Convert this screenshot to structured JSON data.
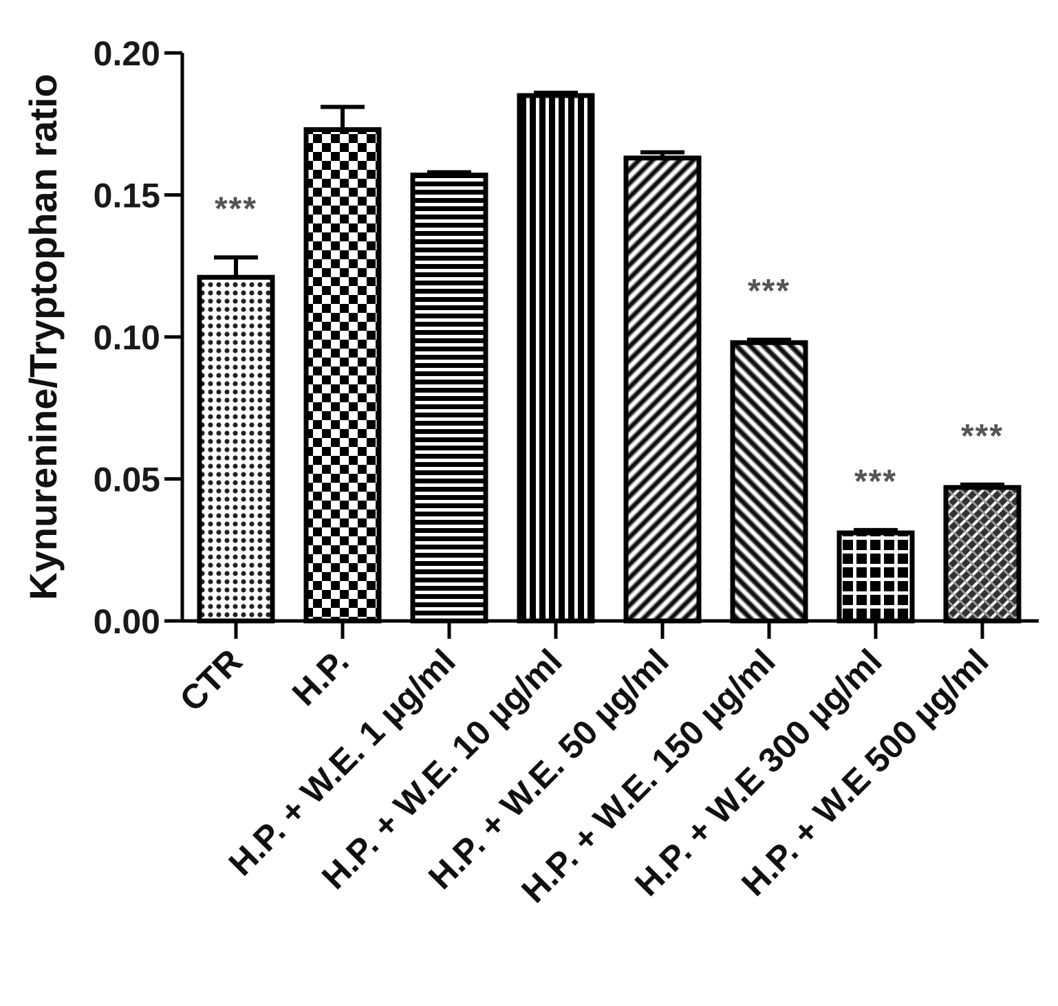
{
  "chart_data": {
    "type": "bar",
    "ylabel": "Kynurenine/Tryptophan ratio",
    "ylim": [
      0,
      0.2
    ],
    "yticks": [
      "0.00",
      "0.05",
      "0.10",
      "0.15",
      "0.20"
    ],
    "ytick_values": [
      0,
      0.05,
      0.1,
      0.15,
      0.2
    ],
    "categories": [
      "CTR",
      "H.P.",
      "H.P. + W.E. 1  µg/ml",
      "H.P. + W.E. 10  µg/ml",
      "H.P. + W.E. 50  µg/ml",
      "H.P. + W.E. 150  µg/ml",
      "H.P. + W.E 300  µg/ml",
      "H.P. + W.E 500  µg/ml"
    ],
    "values": [
      0.121,
      0.173,
      0.157,
      0.185,
      0.163,
      0.098,
      0.031,
      0.047
    ],
    "errors": [
      0.007,
      0.008,
      0.001,
      0.001,
      0.002,
      0.001,
      0.001,
      0.001
    ],
    "significance": [
      "***",
      "",
      "",
      "",
      "",
      "***",
      "***",
      "***"
    ],
    "patterns": [
      "dots",
      "checker",
      "hlines",
      "vlines",
      "diag-right",
      "diag-left",
      "grid",
      "crosshatch"
    ],
    "grid": false,
    "colors": {
      "bar_stroke": "#000000",
      "significance": "#555555"
    }
  }
}
